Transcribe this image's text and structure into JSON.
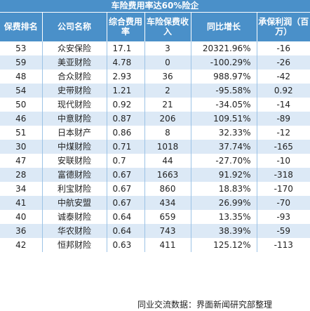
{
  "title": "车险费用率达60%险企",
  "headers": {
    "rank": "保费排名",
    "company": "公司名称",
    "rate": "综合费用率",
    "premium": "车险保费收入",
    "growth": "同比增长",
    "profit": "承保利润（百万）"
  },
  "rows": [
    {
      "rank": "53",
      "company": "众安保险",
      "rate": "17.1",
      "premium": "3",
      "growth": "20321.96%",
      "profit": "-16"
    },
    {
      "rank": "59",
      "company": "美亚财险",
      "rate": "4.78",
      "premium": "0",
      "growth": "-100.29%",
      "profit": "-26"
    },
    {
      "rank": "48",
      "company": "合众财险",
      "rate": "2.93",
      "premium": "36",
      "growth": "988.97%",
      "profit": "-42"
    },
    {
      "rank": "54",
      "company": "史带财险",
      "rate": "1.21",
      "premium": "2",
      "growth": "-95.58%",
      "profit": "0.92"
    },
    {
      "rank": "50",
      "company": "现代财险",
      "rate": "0.92",
      "premium": "21",
      "growth": "-34.05%",
      "profit": "-14"
    },
    {
      "rank": "46",
      "company": "中意财险",
      "rate": "0.87",
      "premium": "206",
      "growth": "109.51%",
      "profit": "-89"
    },
    {
      "rank": "51",
      "company": "日本财产",
      "rate": "0.86",
      "premium": "8",
      "growth": "32.33%",
      "profit": "-12"
    },
    {
      "rank": "30",
      "company": "中煤财险",
      "rate": "0.71",
      "premium": "1018",
      "growth": "37.74%",
      "profit": "-165"
    },
    {
      "rank": "47",
      "company": "安联财险",
      "rate": "0.7",
      "premium": "44",
      "growth": "-27.70%",
      "profit": "-10"
    },
    {
      "rank": "28",
      "company": "富德财险",
      "rate": "0.67",
      "premium": "1663",
      "growth": "91.92%",
      "profit": "-318"
    },
    {
      "rank": "34",
      "company": "利宝财险",
      "rate": "0.67",
      "premium": "860",
      "growth": "18.83%",
      "profit": "-170"
    },
    {
      "rank": "41",
      "company": "中航安盟",
      "rate": "0.67",
      "premium": "434",
      "growth": "26.99%",
      "profit": "-70"
    },
    {
      "rank": "40",
      "company": "诚泰财险",
      "rate": "0.64",
      "premium": "659",
      "growth": "13.35%",
      "profit": "-93"
    },
    {
      "rank": "36",
      "company": "华农财险",
      "rate": "0.64",
      "premium": "743",
      "growth": "38.39%",
      "profit": "-59"
    },
    {
      "rank": "42",
      "company": "恒邦财险",
      "rate": "0.63",
      "premium": "411",
      "growth": "125.12%",
      "profit": "-113"
    }
  ],
  "source": "同业交流数据：界面新闻研究部整理",
  "colors": {
    "header_bg": "#4a90c9",
    "stripe_bg": "#dce9f6",
    "grid": "#9cc3e6"
  }
}
